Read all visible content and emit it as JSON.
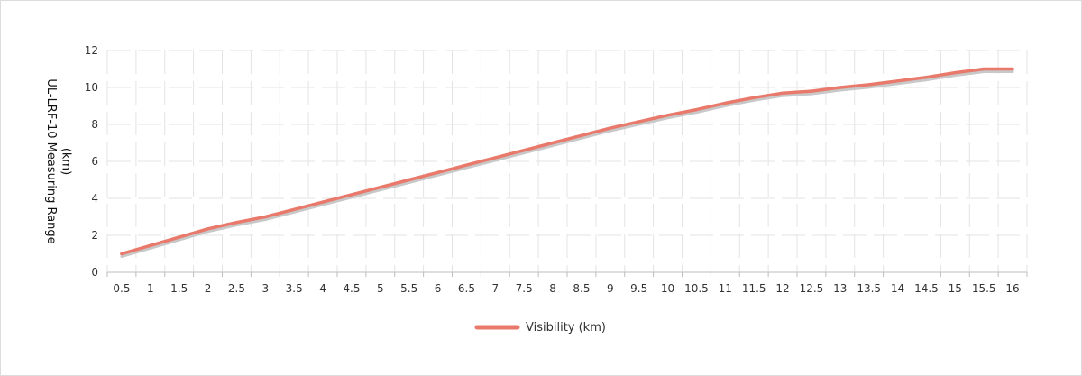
{
  "chart_data": {
    "type": "line",
    "title": "",
    "ylabel": "UL-LRF-10 Measuring Range (km)",
    "ylabel_lines": [
      "UL-LRF-10 Measuring Range",
      "(km)"
    ],
    "xlabel": "",
    "categories": [
      "0.5",
      "1",
      "1.5",
      "2",
      "2.5",
      "3",
      "3.5",
      "4",
      "4.5",
      "5",
      "5.5",
      "6",
      "6.5",
      "7",
      "7.5",
      "8",
      "8.5",
      "9",
      "9.5",
      "10",
      "10.5",
      "11",
      "11.5",
      "12",
      "12.5",
      "13",
      "13.5",
      "14",
      "14.5",
      "15",
      "15.5",
      "16"
    ],
    "ylim": [
      0,
      12
    ],
    "yticks": [
      "0",
      "2",
      "4",
      "6",
      "8",
      "10",
      "12"
    ],
    "series": [
      {
        "name": "Visibility (km)",
        "color": "#e8796b",
        "values": [
          1.0,
          1.45,
          1.9,
          2.35,
          2.7,
          3.0,
          3.4,
          3.8,
          4.2,
          4.6,
          5.0,
          5.4,
          5.8,
          6.2,
          6.6,
          7.0,
          7.4,
          7.8,
          8.15,
          8.5,
          8.8,
          9.15,
          9.45,
          9.7,
          9.8,
          10.0,
          10.15,
          10.35,
          10.55,
          10.8,
          11.0,
          11.0
        ]
      }
    ],
    "grid": true,
    "legend_position": "bottom-center"
  }
}
